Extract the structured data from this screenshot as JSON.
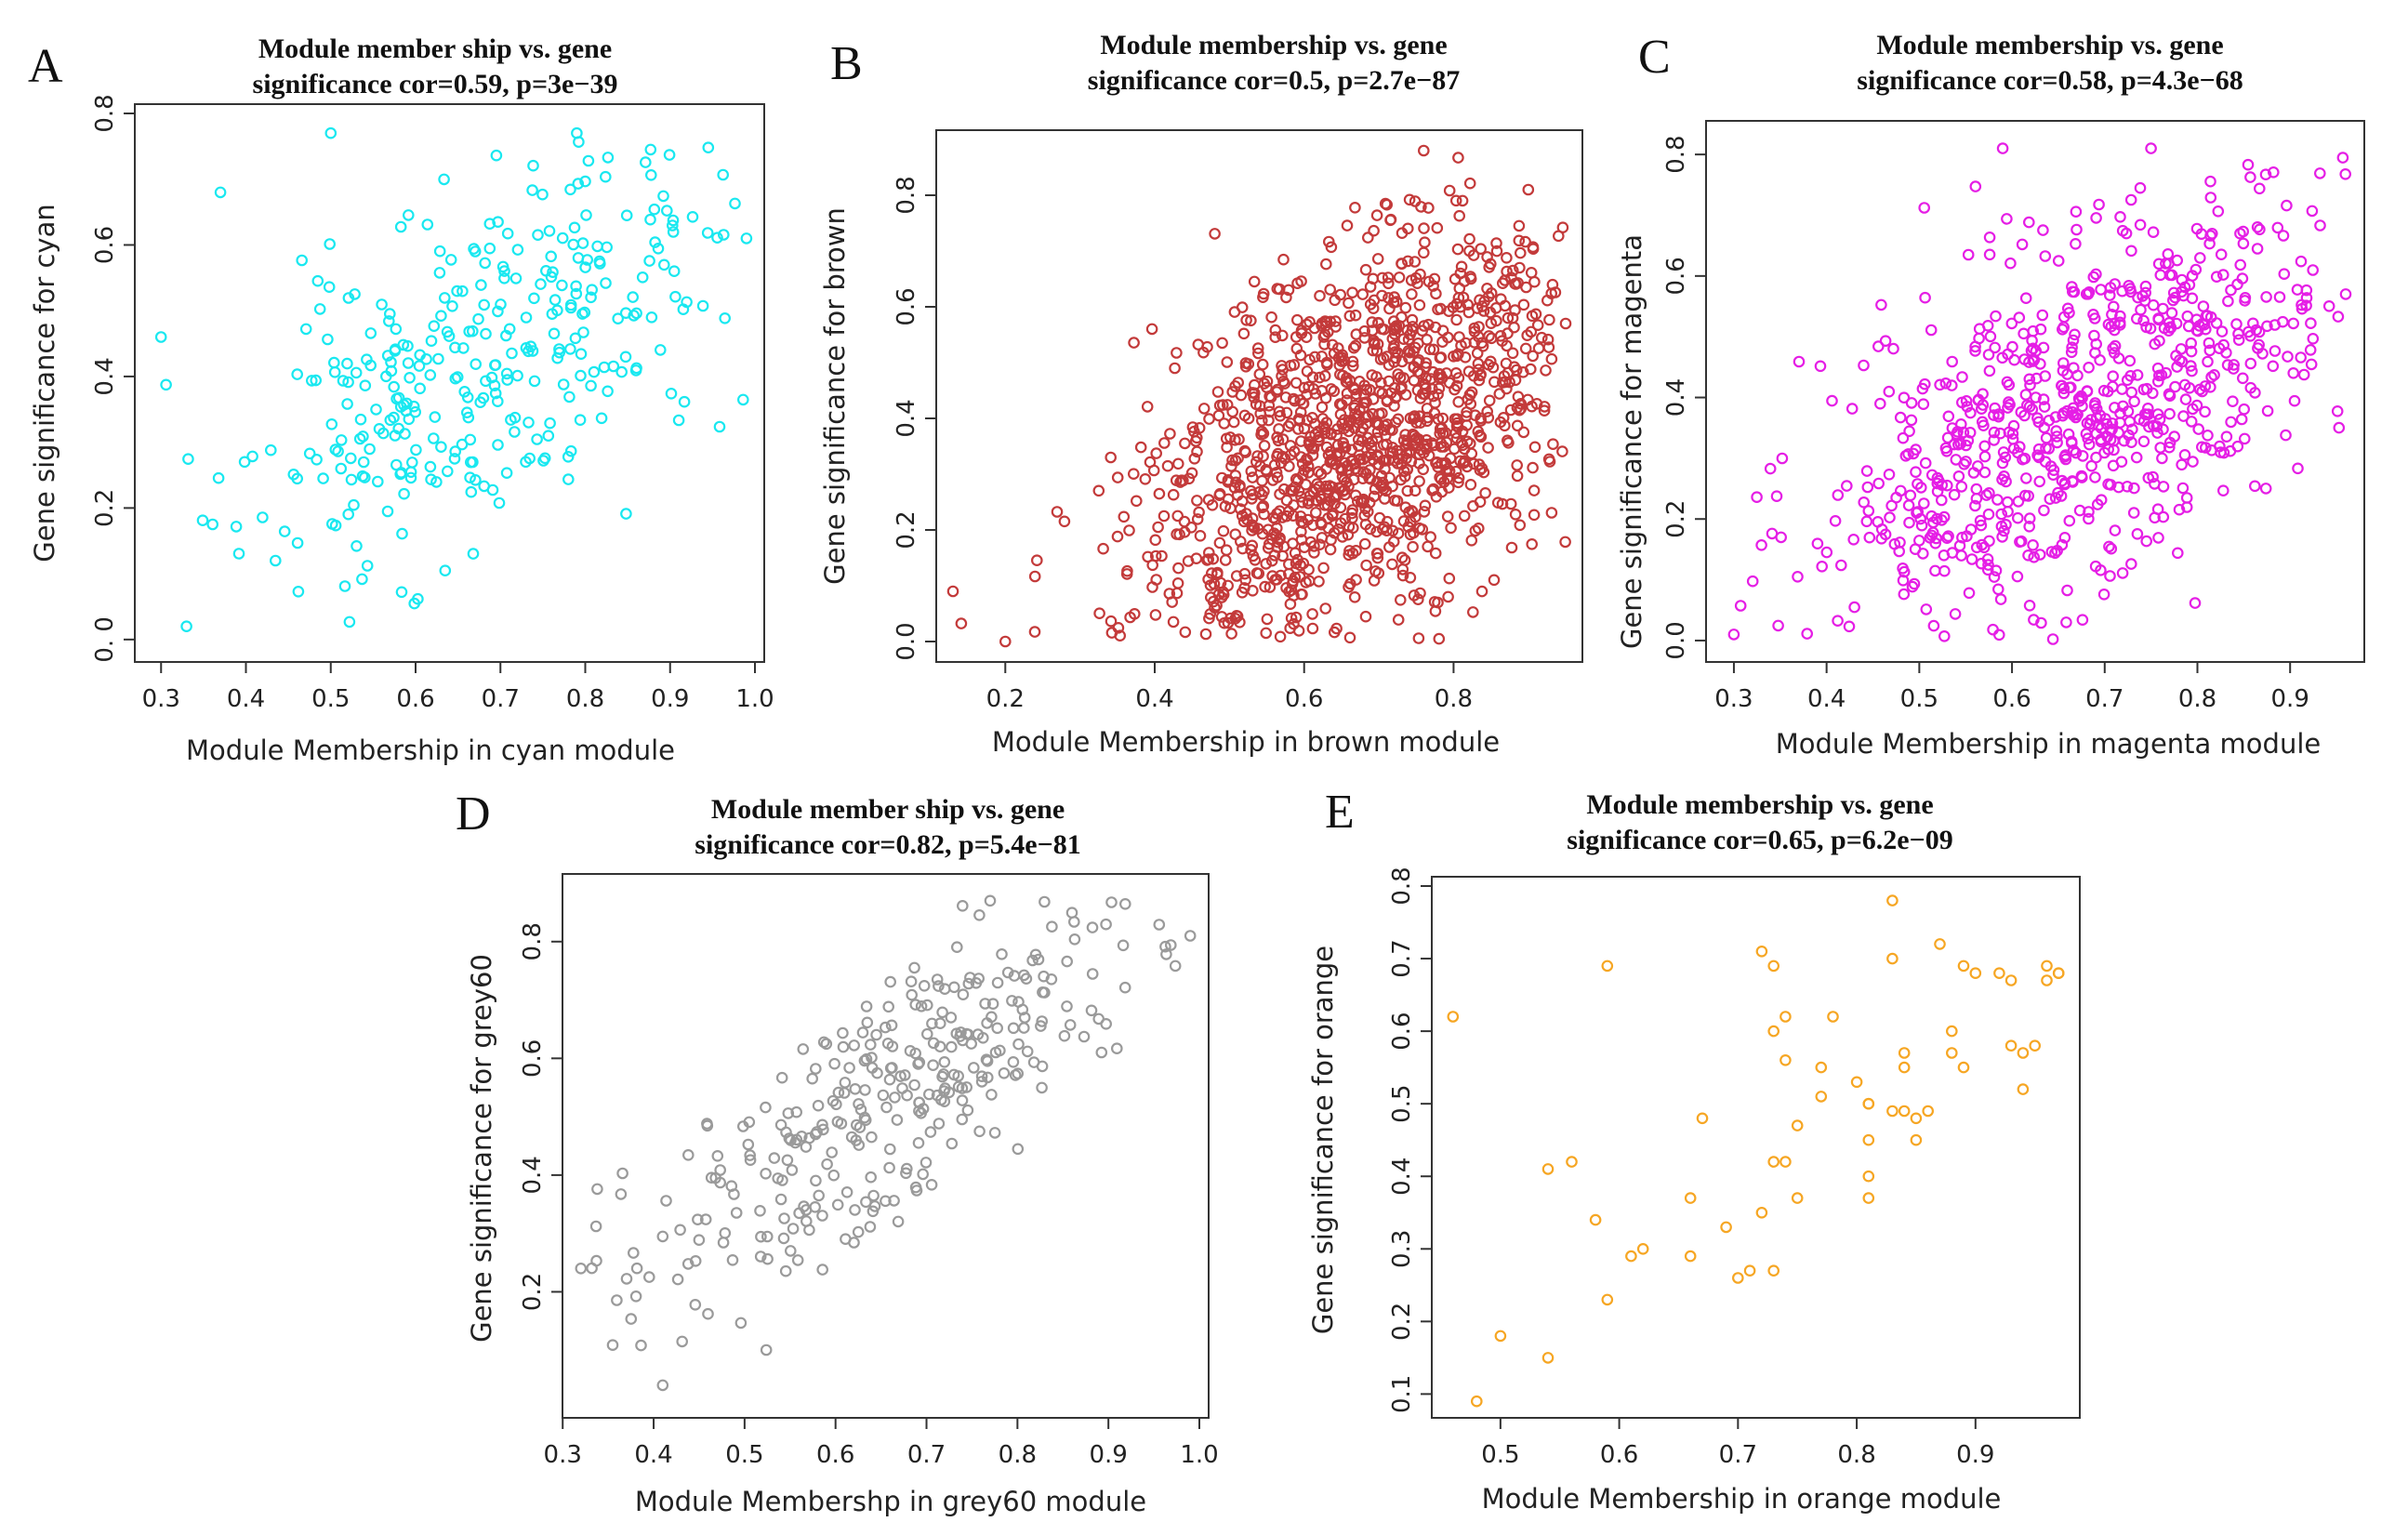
{
  "chart_data": [
    {
      "panel": "A",
      "type": "scatter",
      "title_lines": [
        "Module member ship vs. gene",
        "significance cor=0.59, p=3e−39"
      ],
      "xlabel": "Module Membership in cyan module",
      "ylabel": "Gene significance for cyan",
      "xlim": [
        0.28,
        1.0
      ],
      "ylim": [
        -0.02,
        0.8
      ],
      "xticks": [
        0.3,
        0.4,
        0.5,
        0.6,
        0.7,
        0.8,
        0.9,
        1.0
      ],
      "xtick_labels": [
        "0.3",
        "0.4",
        "0.5",
        "0.6",
        "0.7",
        "0.8",
        "0.9",
        "1.0"
      ],
      "yticks": [
        0.0,
        0.2,
        0.4,
        0.6,
        0.8
      ],
      "ytick_labels": [
        "0. 0",
        "0.2",
        "0.4",
        "0.6",
        "0.8"
      ],
      "color": "#19e8f0",
      "n": 330,
      "cor": 0.59,
      "x_mean": 0.68,
      "x_sd": 0.14,
      "x_min": 0.3,
      "x_max": 0.99,
      "y_mean": 0.42,
      "y_sd": 0.17,
      "y_min": 0.0,
      "y_max": 0.77,
      "seed": 11,
      "highlight_points": [
        [
          0.3,
          0.46
        ],
        [
          0.33,
          0.02
        ],
        [
          0.37,
          0.68
        ],
        [
          0.5,
          0.77
        ],
        [
          0.79,
          0.77
        ],
        [
          0.99,
          0.61
        ]
      ]
    },
    {
      "panel": "B",
      "type": "scatter",
      "title_lines": [
        "Module membership vs. gene",
        "significance cor=0.5, p=2.7e−87"
      ],
      "xlabel": "Module Membership in brown module",
      "ylabel": "Gene significance for brown",
      "xlim": [
        0.12,
        0.96
      ],
      "ylim": [
        -0.02,
        0.9
      ],
      "xticks": [
        0.2,
        0.4,
        0.6,
        0.8
      ],
      "xtick_labels": [
        "0.2",
        "0.4",
        "0.6",
        "0.8"
      ],
      "yticks": [
        0.0,
        0.2,
        0.4,
        0.6,
        0.8
      ],
      "ytick_labels": [
        "0.0",
        "0.2",
        "0.4",
        "0.6",
        "0.8"
      ],
      "color": "#c33a3a",
      "n": 1250,
      "cor": 0.5,
      "x_mean": 0.67,
      "x_sd": 0.15,
      "x_min": 0.13,
      "x_max": 0.95,
      "y_mean": 0.36,
      "y_sd": 0.19,
      "y_min": 0.0,
      "y_max": 0.88,
      "seed": 23,
      "highlight_points": [
        [
          0.13,
          0.09
        ],
        [
          0.2,
          0.0
        ],
        [
          0.76,
          0.88
        ],
        [
          0.95,
          0.57
        ],
        [
          0.9,
          0.81
        ]
      ]
    },
    {
      "panel": "C",
      "type": "scatter",
      "title_lines": [
        "Module membership vs. gene",
        "significance cor=0.58, p=4.3e−68"
      ],
      "xlabel": "Module Membership in magenta module",
      "ylabel": "Gene significance for magenta",
      "xlim": [
        0.28,
        0.97
      ],
      "ylim": [
        -0.02,
        0.84
      ],
      "xticks": [
        0.3,
        0.4,
        0.5,
        0.6,
        0.7,
        0.8,
        0.9
      ],
      "xtick_labels": [
        "0.3",
        "0.4",
        "0.5",
        "0.6",
        "0.7",
        "0.8",
        "0.9"
      ],
      "yticks": [
        0.0,
        0.2,
        0.4,
        0.6,
        0.8
      ],
      "ytick_labels": [
        "0.0",
        "0.2",
        "0.4",
        "0.6",
        "0.8"
      ],
      "color": "#e51ee5",
      "n": 750,
      "cor": 0.58,
      "x_mean": 0.67,
      "x_sd": 0.14,
      "x_min": 0.3,
      "x_max": 0.96,
      "y_mean": 0.38,
      "y_sd": 0.18,
      "y_min": 0.0,
      "y_max": 0.81,
      "seed": 37,
      "highlight_points": [
        [
          0.3,
          0.01
        ],
        [
          0.59,
          0.81
        ],
        [
          0.75,
          0.81
        ],
        [
          0.96,
          0.57
        ]
      ]
    },
    {
      "panel": "D",
      "type": "scatter",
      "title_lines": [
        "Module member ship vs. gene",
        "significance cor=0.82, p=5.4e−81"
      ],
      "xlabel": "Module Membershp in grey60 module",
      "ylabel": "Gene significance for grey60",
      "xlim": [
        0.31,
        1.0
      ],
      "ylim": [
        0.0,
        0.9
      ],
      "xticks": [
        0.3,
        0.4,
        0.5,
        0.6,
        0.7,
        0.8,
        0.9,
        1.0
      ],
      "xtick_labels": [
        "0.3",
        "0.4",
        "0.5",
        "0.6",
        "0.7",
        "0.8",
        "0.9",
        "1.0"
      ],
      "yticks": [
        0.2,
        0.4,
        0.6,
        0.8
      ],
      "ytick_labels": [
        "0.2",
        "0.4",
        "0.6",
        "0.8"
      ],
      "color": "#9a9a9a",
      "n": 320,
      "cor": 0.82,
      "x_mean": 0.66,
      "x_sd": 0.15,
      "x_min": 0.32,
      "x_max": 0.99,
      "y_mean": 0.53,
      "y_sd": 0.18,
      "y_min": 0.04,
      "y_max": 0.87,
      "seed": 53,
      "highlight_points": [
        [
          0.32,
          0.24
        ],
        [
          0.41,
          0.04
        ],
        [
          0.77,
          0.87
        ],
        [
          0.99,
          0.81
        ]
      ]
    },
    {
      "panel": "E",
      "type": "scatter",
      "title_lines": [
        "Module membership vs. gene",
        "significance cor=0.65, p=6.2e−09"
      ],
      "xlabel": "Module Membership in orange module",
      "ylabel": "Gene significance for orange",
      "xlim": [
        0.45,
        0.98
      ],
      "ylim": [
        0.08,
        0.8
      ],
      "xticks": [
        0.5,
        0.6,
        0.7,
        0.8,
        0.9
      ],
      "xtick_labels": [
        "0.5",
        "0.6",
        "0.7",
        "0.8",
        "0.9"
      ],
      "yticks": [
        0.1,
        0.2,
        0.3,
        0.4,
        0.5,
        0.6,
        0.7,
        0.8
      ],
      "ytick_labels": [
        "0.1",
        "0.2",
        "0.3",
        "0.4",
        "0.5",
        "0.6",
        "0.7",
        "0.8"
      ],
      "color": "#f6a623",
      "n": 0,
      "seed": 71,
      "points": [
        [
          0.46,
          0.62
        ],
        [
          0.48,
          0.09
        ],
        [
          0.5,
          0.18
        ],
        [
          0.54,
          0.41
        ],
        [
          0.54,
          0.15
        ],
        [
          0.56,
          0.42
        ],
        [
          0.58,
          0.34
        ],
        [
          0.59,
          0.69
        ],
        [
          0.59,
          0.23
        ],
        [
          0.61,
          0.29
        ],
        [
          0.62,
          0.3
        ],
        [
          0.66,
          0.37
        ],
        [
          0.66,
          0.29
        ],
        [
          0.67,
          0.48
        ],
        [
          0.69,
          0.33
        ],
        [
          0.7,
          0.26
        ],
        [
          0.71,
          0.27
        ],
        [
          0.72,
          0.35
        ],
        [
          0.72,
          0.71
        ],
        [
          0.73,
          0.6
        ],
        [
          0.73,
          0.42
        ],
        [
          0.73,
          0.69
        ],
        [
          0.73,
          0.27
        ],
        [
          0.74,
          0.42
        ],
        [
          0.74,
          0.56
        ],
        [
          0.74,
          0.62
        ],
        [
          0.75,
          0.47
        ],
        [
          0.75,
          0.37
        ],
        [
          0.77,
          0.51
        ],
        [
          0.77,
          0.55
        ],
        [
          0.78,
          0.62
        ],
        [
          0.8,
          0.53
        ],
        [
          0.81,
          0.5
        ],
        [
          0.81,
          0.5
        ],
        [
          0.81,
          0.45
        ],
        [
          0.81,
          0.37
        ],
        [
          0.81,
          0.4
        ],
        [
          0.83,
          0.78
        ],
        [
          0.83,
          0.7
        ],
        [
          0.83,
          0.49
        ],
        [
          0.84,
          0.55
        ],
        [
          0.84,
          0.57
        ],
        [
          0.84,
          0.49
        ],
        [
          0.85,
          0.45
        ],
        [
          0.85,
          0.48
        ],
        [
          0.86,
          0.49
        ],
        [
          0.87,
          0.72
        ],
        [
          0.88,
          0.6
        ],
        [
          0.88,
          0.57
        ],
        [
          0.89,
          0.69
        ],
        [
          0.89,
          0.55
        ],
        [
          0.9,
          0.68
        ],
        [
          0.92,
          0.68
        ],
        [
          0.93,
          0.67
        ],
        [
          0.93,
          0.58
        ],
        [
          0.94,
          0.52
        ],
        [
          0.94,
          0.57
        ],
        [
          0.95,
          0.58
        ],
        [
          0.96,
          0.67
        ],
        [
          0.96,
          0.69
        ],
        [
          0.97,
          0.68
        ],
        [
          0.97,
          0.68
        ]
      ]
    }
  ]
}
